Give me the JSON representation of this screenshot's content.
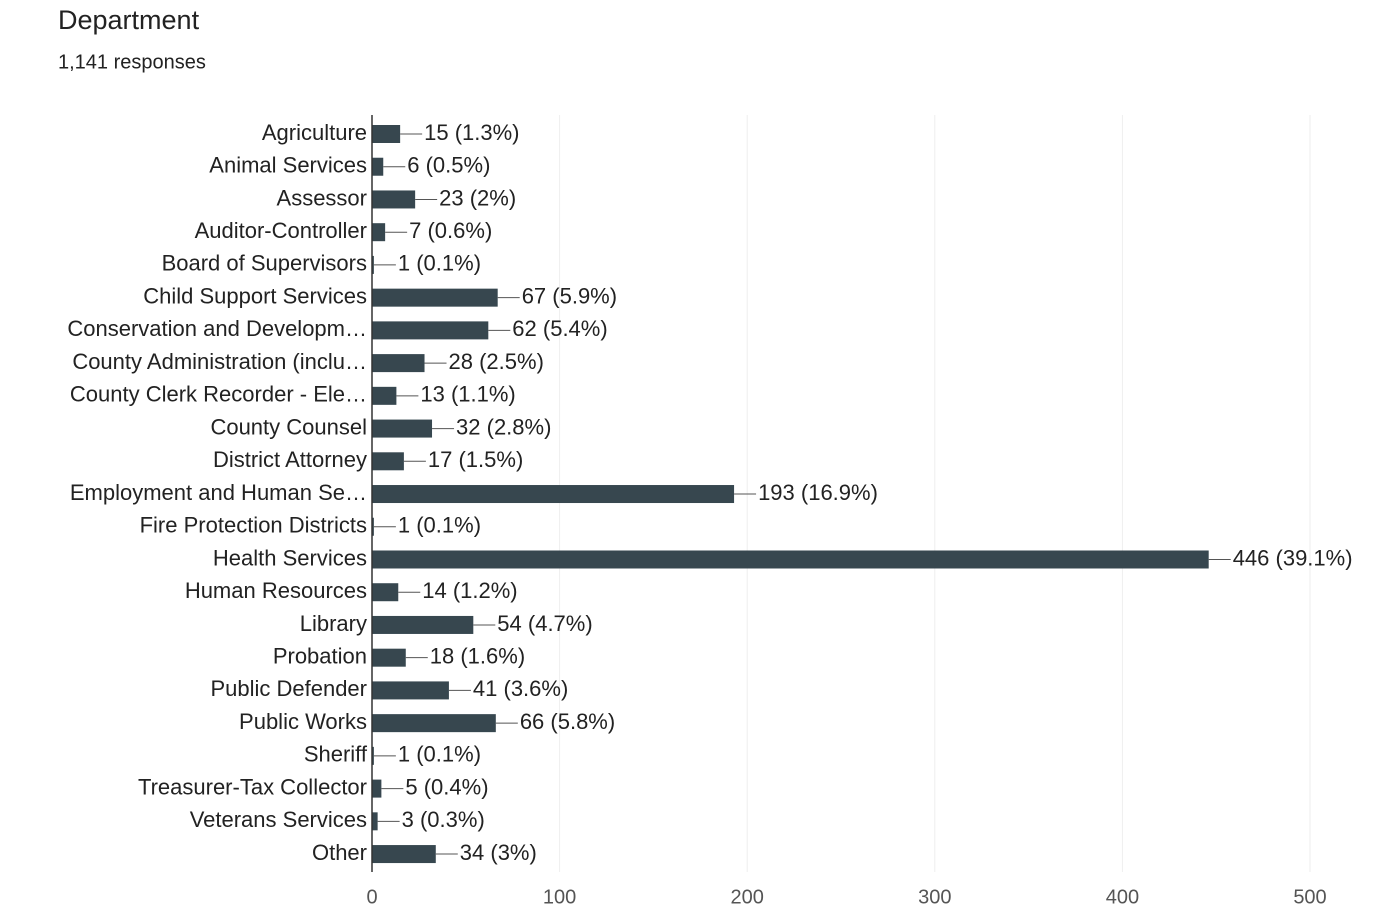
{
  "chart_data": {
    "type": "bar",
    "orientation": "horizontal",
    "title": "Department",
    "subtitle": "1,141 responses",
    "categories": [
      "Agriculture",
      "Animal Services",
      "Assessor",
      "Auditor-Controller",
      "Board of Supervisors",
      "Child Support Services",
      "Conservation and Developm…",
      "County Administration (inclu…",
      "County Clerk Recorder - Ele…",
      "County Counsel",
      "District Attorney",
      "Employment and Human Se…",
      "Fire Protection Districts",
      "Health Services",
      "Human Resources",
      "Library",
      "Probation",
      "Public Defender",
      "Public Works",
      "Sheriff",
      "Treasurer-Tax Collector",
      "Veterans Services",
      "Other"
    ],
    "values": [
      15,
      6,
      23,
      7,
      1,
      67,
      62,
      28,
      13,
      32,
      17,
      193,
      1,
      446,
      14,
      54,
      18,
      41,
      66,
      1,
      5,
      3,
      34
    ],
    "value_labels": [
      "15 (1.3%)",
      "6 (0.5%)",
      "23 (2%)",
      "7 (0.6%)",
      "1 (0.1%)",
      "67 (5.9%)",
      "62 (5.4%)",
      "28 (2.5%)",
      "13 (1.1%)",
      "32 (2.8%)",
      "17 (1.5%)",
      "193 (16.9%)",
      "1 (0.1%)",
      "446 (39.1%)",
      "14 (1.2%)",
      "54 (4.7%)",
      "18 (1.6%)",
      "41 (3.6%)",
      "66 (5.8%)",
      "1 (0.1%)",
      "5 (0.4%)",
      "3 (0.3%)",
      "34 (3%)"
    ],
    "color": "#37474f",
    "xlim": [
      0,
      500
    ],
    "xticks": [
      0,
      100,
      200,
      300,
      400,
      500
    ],
    "grid": true
  }
}
